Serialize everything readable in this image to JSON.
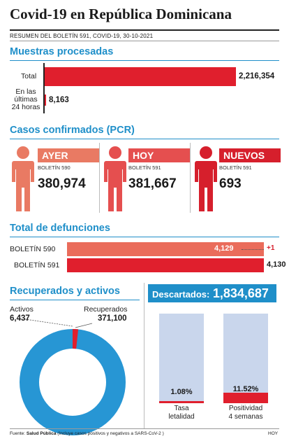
{
  "header": {
    "title": "Covid-19 en República Dominicana",
    "subtitle": "RESUMEN DEL BOLETÍN 591, COVID-19, 30-10-2021"
  },
  "muestras": {
    "heading": "Muestras procesadas",
    "total_label": "Total",
    "total_value": "2,216,354",
    "recent_label_1": "En las",
    "recent_label_2": "últimas",
    "recent_label_3": "24 horas",
    "recent_value": "8,163"
  },
  "casos": {
    "heading": "Casos confirmados (PCR)",
    "cards": [
      {
        "tag": "AYER",
        "boletin": "BOLETÍN 590",
        "value": "380,974",
        "color": "#e97a63"
      },
      {
        "tag": "HOY",
        "boletin": "BOLETÍN 591",
        "value": "381,667",
        "color": "#e54f4f"
      },
      {
        "tag": "NUEVOS",
        "boletin": "BOLETÍN 591",
        "value": "693",
        "color": "#d61f2c"
      }
    ]
  },
  "defunciones": {
    "heading": "Total de defunciones",
    "rows": [
      {
        "label": "BOLETÍN 590",
        "value": "4,129"
      },
      {
        "label": "BOLETÍN 591",
        "value": "4,130"
      }
    ],
    "delta": "+1"
  },
  "recuperados": {
    "heading": "Recuperados y activos",
    "activos_label": "Activos",
    "activos_value": "6,437",
    "recuperados_label": "Recuperados",
    "recuperados_value": "371,100",
    "activos_fraction": 0.017
  },
  "descartados": {
    "label": "Descartados:",
    "value": "1,834,687",
    "bars": [
      {
        "value": "1.08%",
        "label_1": "Tasa",
        "label_2": "letalidad",
        "fill": 0.0108
      },
      {
        "value": "11.52%",
        "label_1": "Positividad",
        "label_2": "4 semanas",
        "fill": 0.1152
      }
    ]
  },
  "footer": {
    "source_prefix": "Fuente:",
    "source_bold": "Salud Pública",
    "source_note": "(Incluye casos positivos y negativos a SARS-CoV-2 )",
    "credit": "HOY"
  },
  "colors": {
    "accent": "#1f8fc9",
    "red": "#e01f2d",
    "salmon": "#e96a55",
    "donut_blue": "#2796d4",
    "bar_bg": "#c9d6ec"
  }
}
